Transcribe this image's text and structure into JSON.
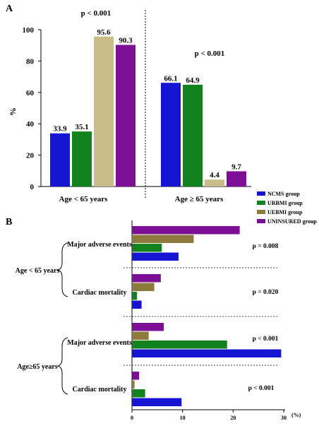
{
  "colors": {
    "ncms": "#1414d2",
    "urbmi": "#12821e",
    "uebmi_a": "#c9be8a",
    "uebmi_b": "#8c7a3c",
    "uninsured": "#7d0f96"
  },
  "chart_data": [
    {
      "type": "bar",
      "panel_label": "A",
      "ylabel": "%",
      "ylim": [
        0,
        100
      ],
      "yticks": [
        "0",
        "20",
        "40",
        "60",
        "80",
        "100"
      ],
      "categories": [
        "Age < 65 years",
        "Age ≥ 65 years"
      ],
      "series": [
        {
          "name": "NCMS group",
          "values": [
            33.9,
            66.1
          ],
          "labels": [
            "33.9",
            "66.1"
          ]
        },
        {
          "name": "URBMI group",
          "values": [
            35.1,
            64.9
          ],
          "labels": [
            "35.1",
            "64.9"
          ]
        },
        {
          "name": "UEBMI group",
          "values": [
            95.6,
            4.4
          ],
          "labels": [
            "95.6",
            "4.4"
          ]
        },
        {
          "name": "UNINSURED group",
          "values": [
            90.3,
            9.7
          ],
          "labels": [
            "90.3",
            "9.7"
          ]
        }
      ],
      "annotations": [
        "p < 0.001",
        "p < 0.001"
      ],
      "grid": false
    },
    {
      "type": "bar",
      "orientation": "horizontal",
      "panel_label": "B",
      "xlabel": "(%)",
      "xlim": [
        0,
        30
      ],
      "xticks": [
        "0",
        "10",
        "20",
        "30"
      ],
      "groups": [
        {
          "name": "Age < 65 years",
          "categories": [
            "Major adverse events",
            "Cardiac mortality"
          ]
        },
        {
          "name": "Age≥65 years",
          "categories": [
            "Major adverse events",
            "Cardiac mortality"
          ]
        }
      ],
      "series": [
        {
          "name": "NCMS group",
          "values": [
            9.2,
            1.9,
            29.5,
            9.8
          ]
        },
        {
          "name": "URBMI group",
          "values": [
            5.9,
            1.0,
            18.8,
            2.6
          ]
        },
        {
          "name": "UEBMI group",
          "values": [
            12.2,
            4.4,
            3.3,
            0.5
          ]
        },
        {
          "name": "UNINSURED group",
          "values": [
            21.3,
            5.7,
            6.3,
            1.4
          ]
        }
      ],
      "annotations": [
        "p = 0.008",
        "p = 0.020",
        "p < 0.001",
        "p < 0.001"
      ],
      "legend_position": "top-right",
      "grid": false
    }
  ]
}
